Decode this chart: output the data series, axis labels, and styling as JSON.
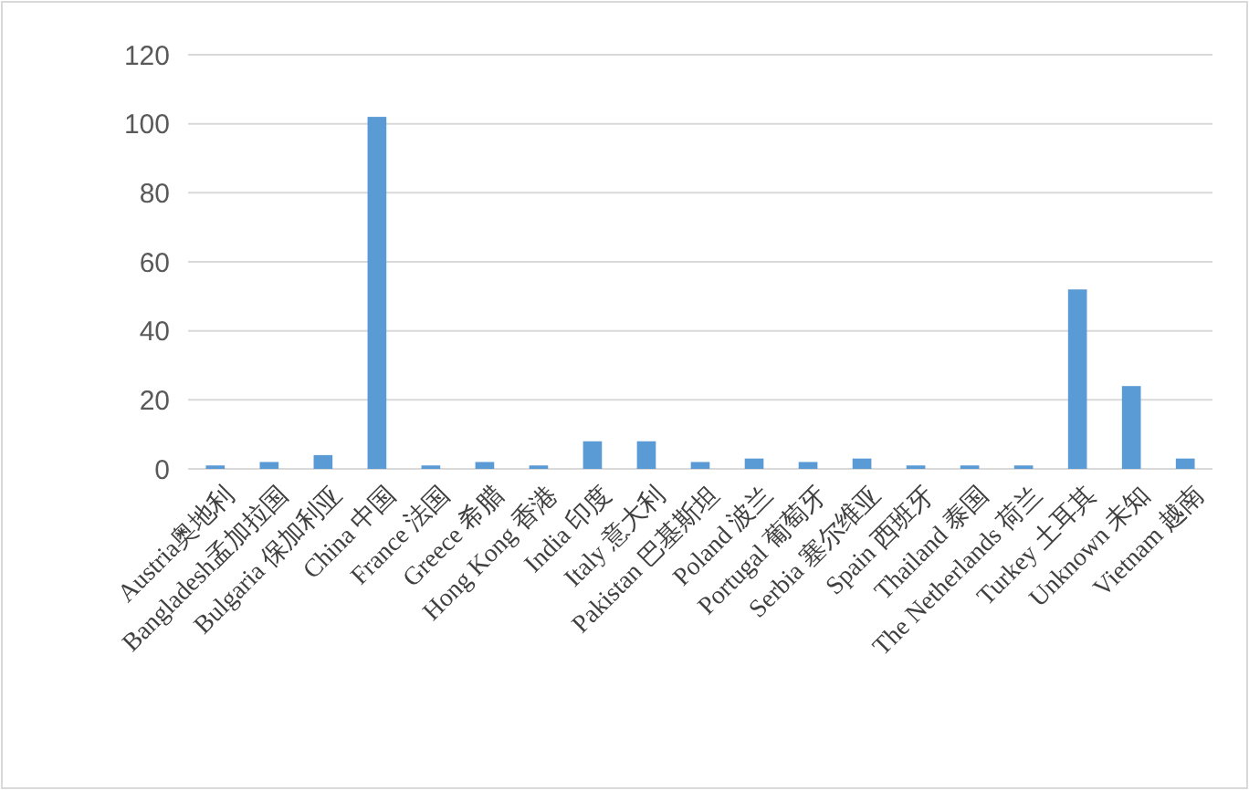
{
  "chart_data": {
    "type": "bar",
    "categories": [
      "Austria奥地利",
      "Bangladesh孟加拉国",
      "Bulgaria 保加利亚",
      "China 中国",
      "France 法国",
      "Greece 希腊",
      "Hong Kong 香港",
      "India 印度",
      "Italy 意大利",
      "Pakistan 巴基斯坦",
      "Poland 波兰",
      "Portugal 葡萄牙",
      "Serbia 塞尔维亚",
      "Spain 西班牙",
      "Thailand 泰国",
      "The Netherlands 荷兰",
      "Turkey 土耳其",
      "Unknown 未知",
      "Vietnam 越南"
    ],
    "values": [
      1,
      2,
      4,
      102,
      1,
      2,
      1,
      8,
      8,
      2,
      3,
      2,
      3,
      1,
      1,
      1,
      52,
      24,
      3
    ],
    "color": "#5b9bd5",
    "ylim": [
      0,
      120
    ],
    "yticks": [
      0,
      20,
      40,
      60,
      80,
      100,
      120
    ],
    "grid": "y"
  }
}
